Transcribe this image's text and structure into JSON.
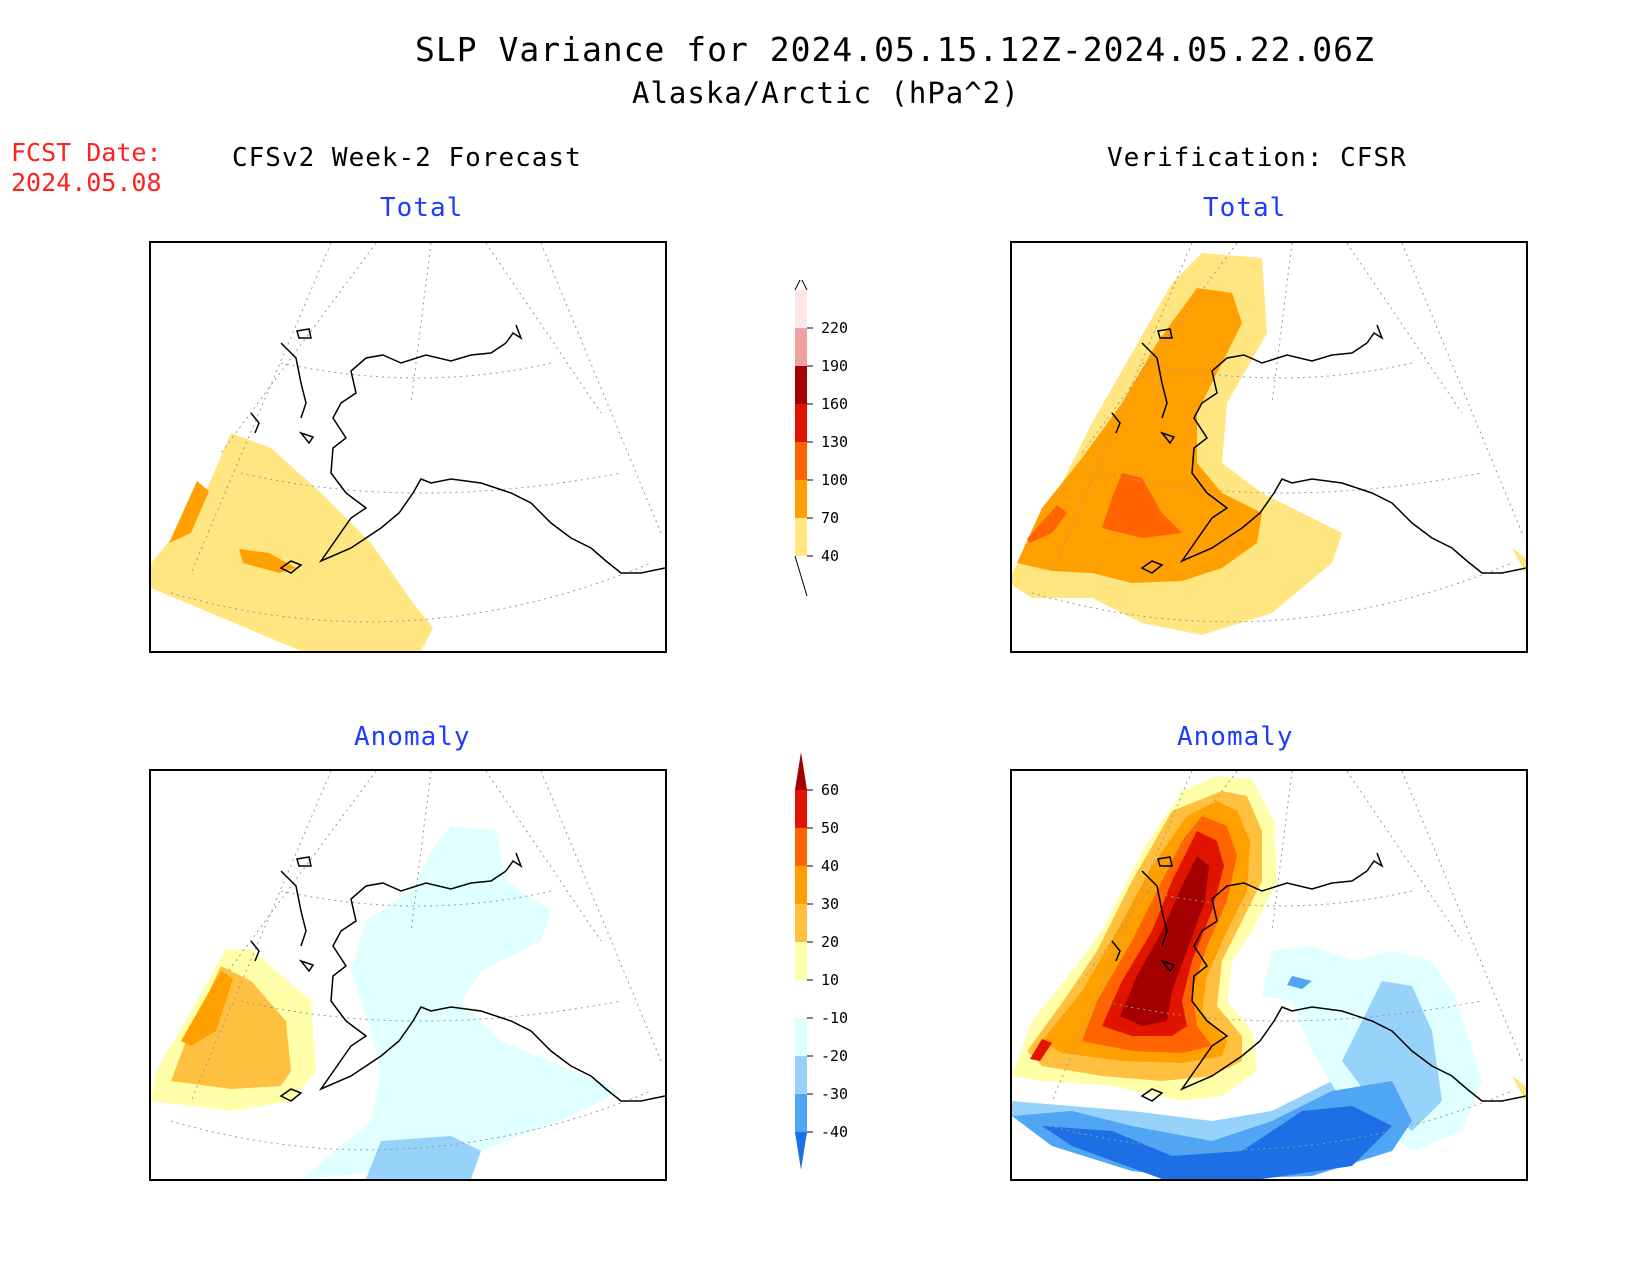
{
  "title": "SLP Variance for 2024.05.15.12Z-2024.05.22.06Z",
  "subtitle": "Alaska/Arctic (hPa^2)",
  "fcst_label": "FCST Date:",
  "fcst_date": "2024.05.08",
  "left_heading": "CFSv2 Week-2 Forecast",
  "right_heading": "Verification: CFSR",
  "panels": {
    "top_left_label": "Total",
    "top_right_label": "Total",
    "bottom_left_label": "Anomaly",
    "bottom_right_label": "Anomaly"
  },
  "colorbar_total": {
    "levels": [
      "40",
      "70",
      "100",
      "130",
      "160",
      "190",
      "220"
    ],
    "colors": [
      "#ffe680",
      "#ffa000",
      "#ff6400",
      "#e11400",
      "#a50000",
      "#f0a0a0",
      "#ffe6e6"
    ]
  },
  "colorbar_anomaly": {
    "levels": [
      "60",
      "50",
      "40",
      "30",
      "20",
      "10",
      "-10",
      "-20",
      "-30",
      "-40"
    ],
    "colors": [
      "#a50000",
      "#e11400",
      "#ff6400",
      "#ffa000",
      "#ffc040",
      "#ffffaa",
      "#ffffff",
      "#e0ffff",
      "#96d2fa",
      "#50a5f5",
      "#1e6ee6"
    ]
  }
}
